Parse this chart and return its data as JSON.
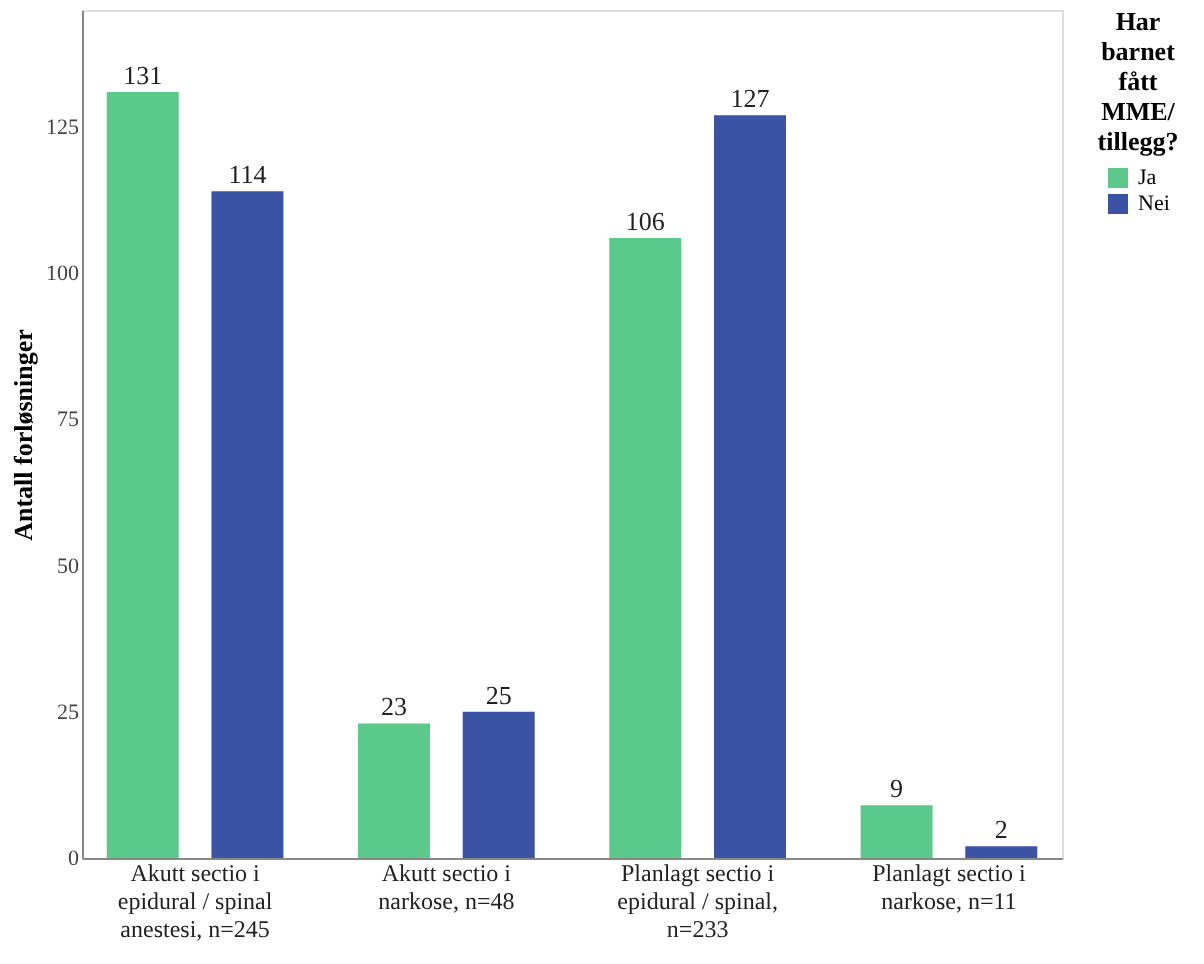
{
  "chart_data": {
    "type": "bar",
    "ylabel": "Antall forløsninger",
    "legend_title": "Har barnet fått MME/ tillegg?",
    "categories": [
      "Akutt sectio i epidural / spinal anestesi, n=245",
      "Akutt sectio i narkose, n=48",
      "Planlagt sectio i epidural / spinal, n=233",
      "Planlagt sectio i narkose, n=11"
    ],
    "series": [
      {
        "name": "Ja",
        "color": "#5ac98a",
        "values": [
          131,
          23,
          106,
          9
        ]
      },
      {
        "name": "Nei",
        "color": "#3a53a4",
        "values": [
          114,
          25,
          127,
          2
        ]
      }
    ],
    "ylim": [
      0,
      145
    ],
    "yticks": [
      0,
      25,
      50,
      75,
      100,
      125
    ],
    "grid": false,
    "legend": "right",
    "data_labels": true
  }
}
